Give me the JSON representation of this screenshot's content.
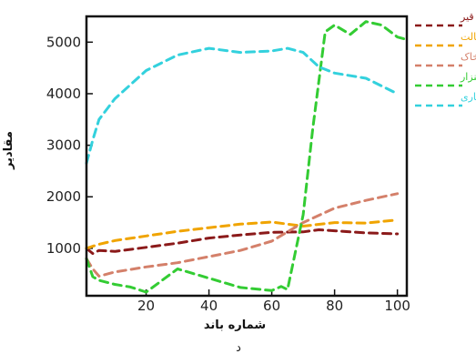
{
  "chart_data": {
    "type": "line",
    "title": "",
    "xlabel": "شماره باند",
    "ylabel": "مقادیر",
    "caption": "د",
    "xlim": [
      1,
      103
    ],
    "ylim": [
      80,
      5500
    ],
    "xticks": [
      20,
      40,
      60,
      80,
      100
    ],
    "yticks": [
      1000,
      2000,
      3000,
      4000,
      5000
    ],
    "grid": false,
    "legend_position": "right-outside-top",
    "series": [
      {
        "name": "قیر",
        "color": "#8b1a1a",
        "x": [
          1,
          3,
          5,
          10,
          20,
          30,
          40,
          50,
          60,
          70,
          75,
          80,
          90,
          100
        ],
        "y": [
          1000,
          900,
          960,
          940,
          1020,
          1100,
          1200,
          1260,
          1310,
          1320,
          1360,
          1340,
          1300,
          1280
        ]
      },
      {
        "name": "آسفالت",
        "color": "#f0a400",
        "x": [
          1,
          5,
          10,
          20,
          30,
          40,
          50,
          60,
          70,
          80,
          90,
          100
        ],
        "y": [
          1000,
          1080,
          1150,
          1240,
          1330,
          1400,
          1470,
          1510,
          1430,
          1500,
          1490,
          1550
        ]
      },
      {
        "name": "خاک",
        "color": "#d4806a",
        "x": [
          1,
          3,
          5,
          10,
          20,
          30,
          40,
          50,
          60,
          70,
          80,
          90,
          100
        ],
        "y": [
          800,
          600,
          460,
          540,
          640,
          720,
          840,
          960,
          1140,
          1500,
          1780,
          1930,
          2060
        ]
      },
      {
        "name": "چمنزار",
        "color": "#33cc33",
        "x": [
          1,
          3,
          5,
          10,
          15,
          20,
          30,
          40,
          50,
          60,
          63,
          65,
          70,
          73,
          77,
          80,
          85,
          90,
          95,
          100,
          103
        ],
        "y": [
          800,
          450,
          380,
          300,
          250,
          150,
          600,
          420,
          240,
          180,
          260,
          200,
          1650,
          3300,
          5200,
          5330,
          5150,
          5400,
          5330,
          5100,
          5050
        ]
      },
      {
        "name": "ناهنجاری",
        "color": "#33d1dd",
        "x": [
          1,
          3,
          5,
          10,
          20,
          30,
          40,
          50,
          60,
          65,
          70,
          75,
          80,
          90,
          100
        ],
        "y": [
          2650,
          3100,
          3500,
          3900,
          4450,
          4750,
          4880,
          4800,
          4830,
          4880,
          4800,
          4520,
          4400,
          4300,
          4000
        ]
      }
    ]
  }
}
